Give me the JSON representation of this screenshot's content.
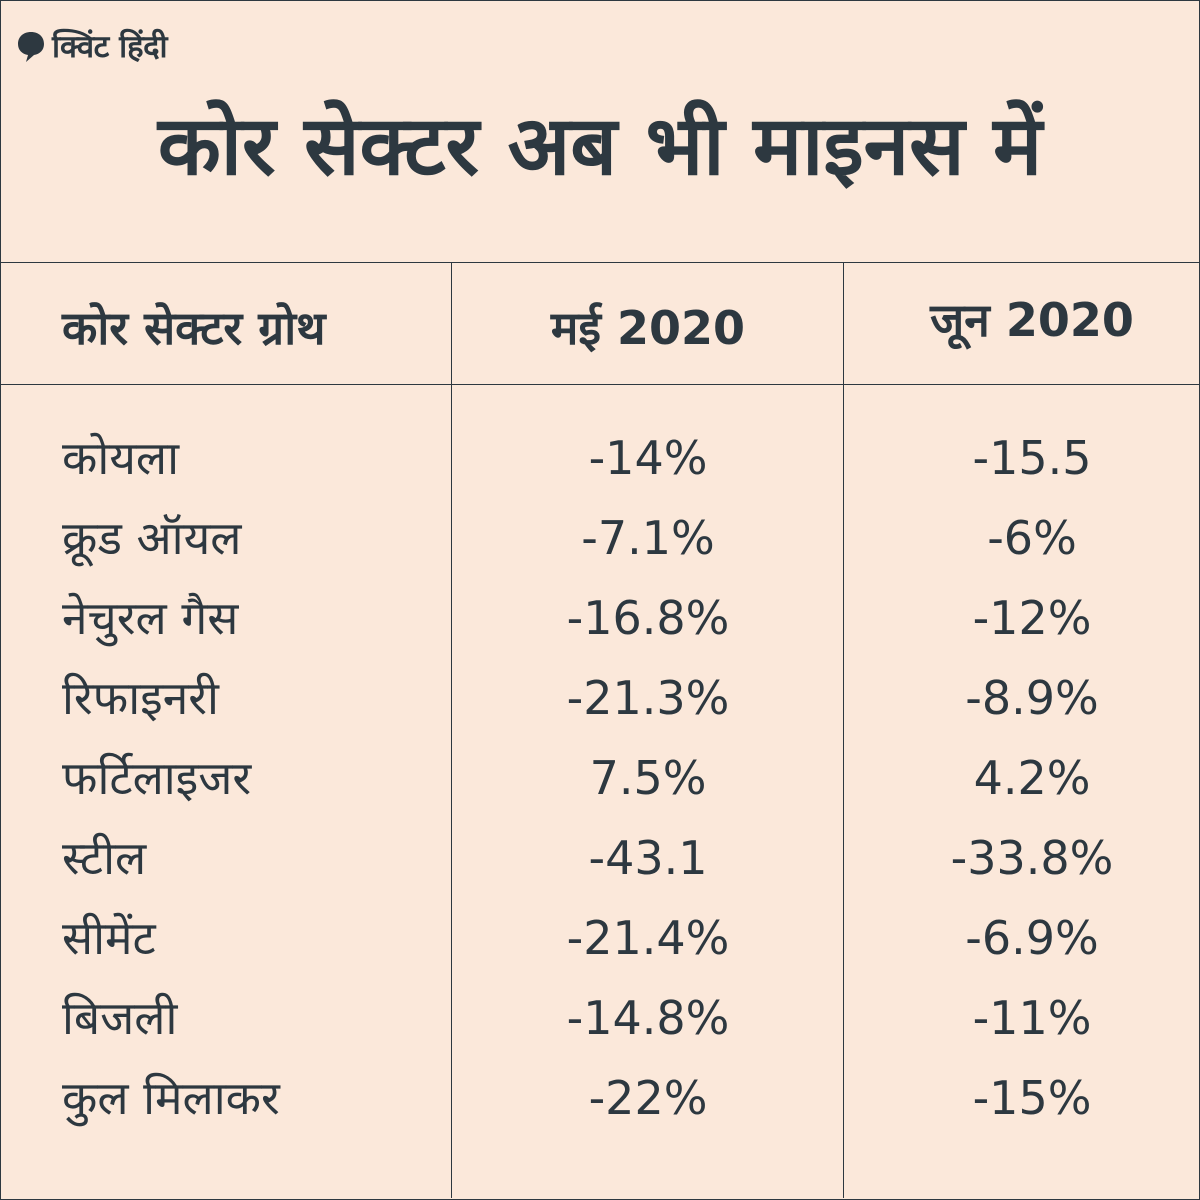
{
  "brand": {
    "name": "क्विंट हिंदी",
    "icon": "quint-speech-bubble-icon",
    "color": "#2d3840",
    "background": "#fbe8da"
  },
  "title": "कोर सेक्टर अब भी माइनस में",
  "chart_data": {
    "type": "table",
    "title": "कोर सेक्टर अब भी माइनस में",
    "columns": [
      "कोर सेक्टर ग्रोथ",
      "मई 2020",
      "जून 2020"
    ],
    "rows": [
      {
        "label": "कोयला",
        "may": "-14%",
        "june": "-15.5"
      },
      {
        "label": "क्रूड ऑयल",
        "may": "-7.1%",
        "june": "-6%"
      },
      {
        "label": "नेचुरल गैस",
        "may": "-16.8%",
        "june": "-12%"
      },
      {
        "label": "रिफाइनरी",
        "may": "-21.3%",
        "june": "-8.9%"
      },
      {
        "label": "फर्टिलाइजर",
        "may": "7.5%",
        "june": "4.2%"
      },
      {
        "label": "स्टील",
        "may": "-43.1",
        "june": "-33.8%"
      },
      {
        "label": "सीमेंट",
        "may": "-21.4%",
        "june": "-6.9%"
      },
      {
        "label": "बिजली",
        "may": "-14.8%",
        "june": "-11%"
      },
      {
        "label": "कुल मिलाकर",
        "may": "-22%",
        "june": "-15%"
      }
    ]
  }
}
